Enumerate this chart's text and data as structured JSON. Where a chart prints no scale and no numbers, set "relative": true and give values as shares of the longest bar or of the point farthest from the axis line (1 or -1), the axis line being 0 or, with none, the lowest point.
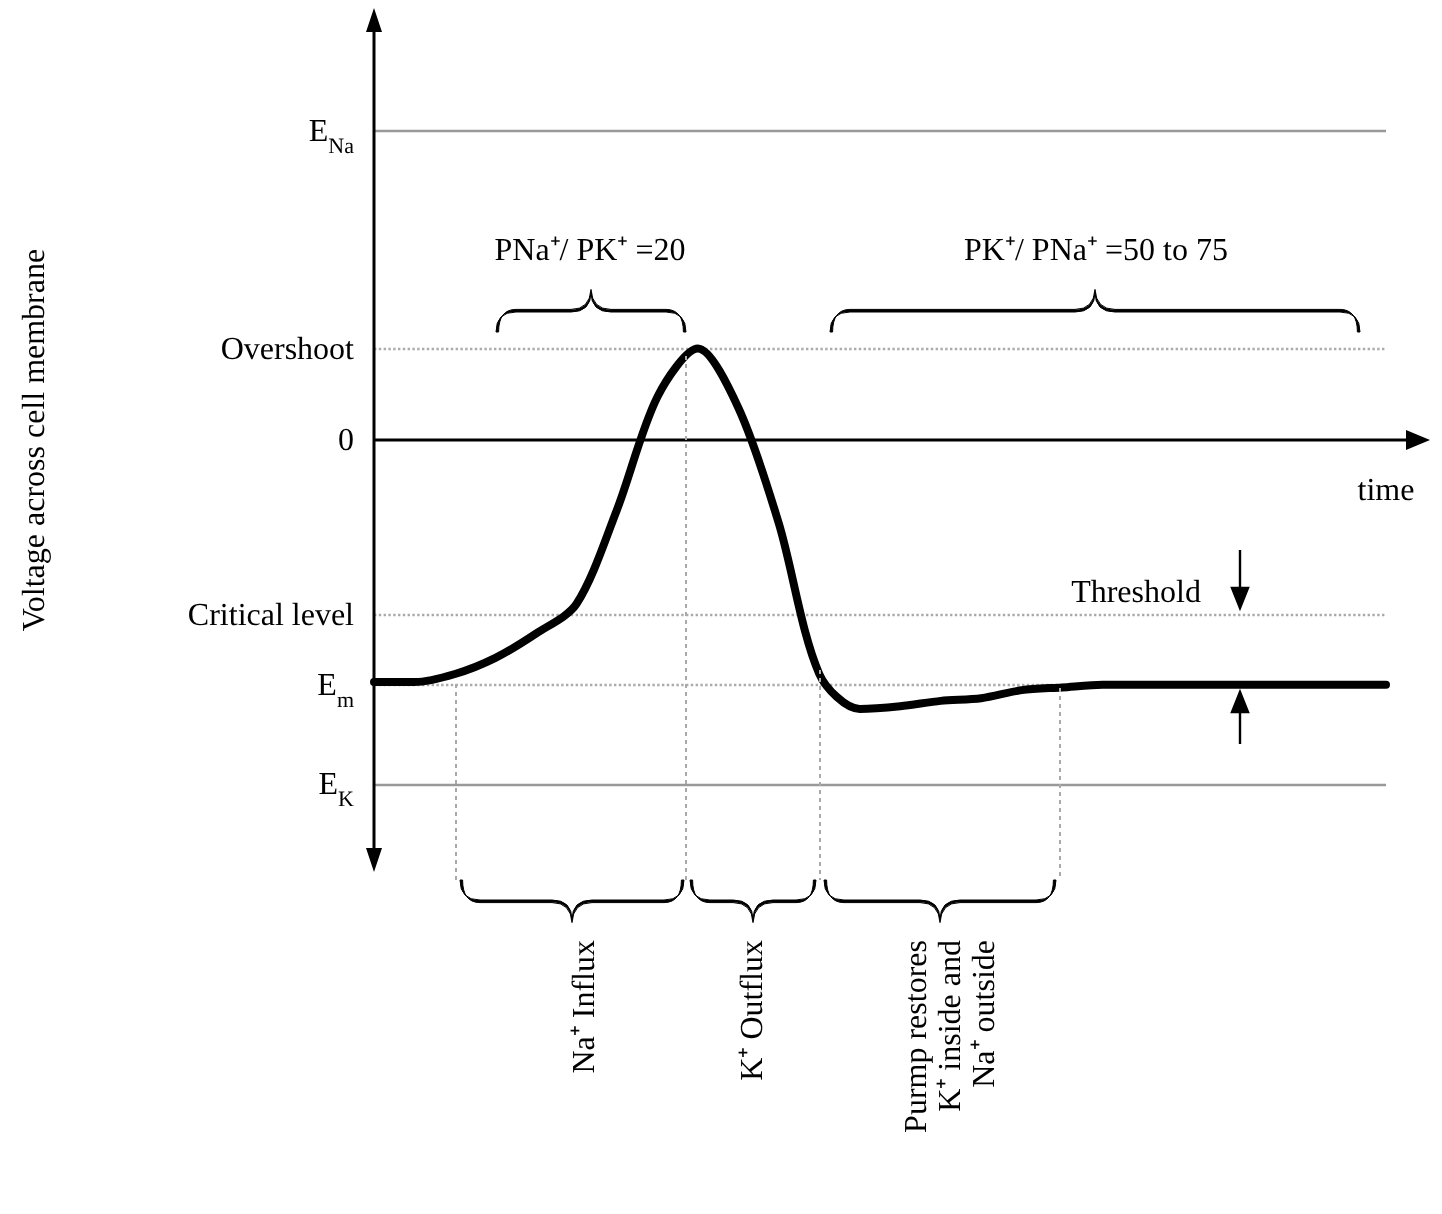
{
  "chart_data": {
    "type": "line",
    "relative": true,
    "xlabel": "time",
    "categories": [
      null,
      null,
      null,
      null,
      null,
      null,
      null,
      null,
      null,
      null,
      null,
      null,
      null,
      null,
      null,
      null,
      null,
      null,
      null,
      null,
      null,
      null,
      null,
      null,
      null,
      null
    ],
    "series": [
      {
        "color": "#000000",
        "values": [
          -0.9,
          -0.9,
          -0.87,
          -0.81,
          -0.72,
          -0.61,
          -0.26,
          0.16,
          0.34,
          0.12,
          -0.31,
          -0.87,
          -1,
          -0.99,
          -0.97,
          -0.96,
          -0.93,
          -0.92,
          -0.91,
          -0.91,
          -0.91,
          -0.91,
          -0.91,
          -0.91,
          -0.91,
          -0.91
        ]
      }
    ],
    "marker": "none",
    "line_style": "solid",
    "grid": false,
    "ref_lines": [
      {
        "axis": "y",
        "value": 1.15,
        "label": "E$_{Na}$",
        "color": "#999999",
        "line_style": "solid"
      },
      {
        "axis": "y",
        "value": 0.34,
        "label": "Overshoot",
        "color": "#aaaaaa",
        "line_style": "dotted"
      },
      {
        "axis": "y",
        "value": 0,
        "label": "0",
        "color": "#000000",
        "line_style": "solid"
      },
      {
        "axis": "y",
        "value": -0.65,
        "label": "Critical level",
        "color": "#aaaaaa",
        "line_style": "dotted"
      },
      {
        "axis": "y",
        "value": -0.91,
        "label": "E$_{m}$",
        "color": "#aaaaaa",
        "line_style": "dotted"
      },
      {
        "axis": "y",
        "value": -1.28,
        "label": "E$_{K}$",
        "color": "#999999",
        "line_style": "solid"
      }
    ],
    "annotations": [
      "PNa⁺/ PK⁺ =20",
      "PK⁺/ PNa⁺ =50 to 75",
      "Na⁺ Influx",
      "K⁺ Outflux",
      "Purmp restores\nK⁺ inside and\nNa⁺ outside",
      "Threshold",
      "Voltage  across cell membrane"
    ]
  }
}
